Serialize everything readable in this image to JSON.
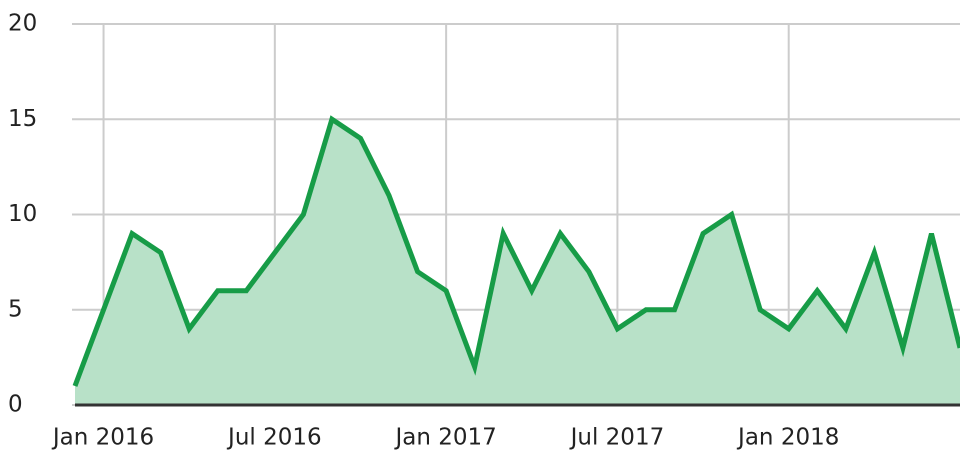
{
  "chart_data": {
    "type": "area",
    "x": [
      "2015-12",
      "2016-02",
      "2016-03",
      "2016-04",
      "2016-05",
      "2016-06",
      "2016-07",
      "2016-08",
      "2016-09",
      "2016-10",
      "2016-11",
      "2016-12",
      "2017-01",
      "2017-02",
      "2017-03",
      "2017-04",
      "2017-05",
      "2017-06",
      "2017-07",
      "2017-08",
      "2017-09",
      "2017-10",
      "2017-11",
      "2017-12",
      "2018-01",
      "2018-02",
      "2018-03",
      "2018-04",
      "2018-05",
      "2018-06",
      "2018-07"
    ],
    "values": [
      1,
      9,
      8,
      4,
      6,
      6,
      8,
      10,
      15,
      14,
      11,
      7,
      6,
      2,
      9,
      6,
      9,
      7,
      4,
      5,
      5,
      9,
      10,
      5,
      4,
      6,
      4,
      8,
      3,
      9,
      3
    ],
    "color": "#179c47",
    "fill": "#b8e1c8",
    "xlim": [
      "2015-12",
      "2018-07"
    ],
    "xticks": [
      {
        "value": "2016-01",
        "label": "Jan 2016"
      },
      {
        "value": "2016-07",
        "label": "Jul 2016"
      },
      {
        "value": "2017-01",
        "label": "Jan 2017"
      },
      {
        "value": "2017-07",
        "label": "Jul 2017"
      },
      {
        "value": "2018-01",
        "label": "Jan 2018"
      }
    ],
    "ylim": [
      0,
      20
    ],
    "yticks": [
      0,
      5,
      10,
      15,
      20
    ],
    "grid": true
  }
}
